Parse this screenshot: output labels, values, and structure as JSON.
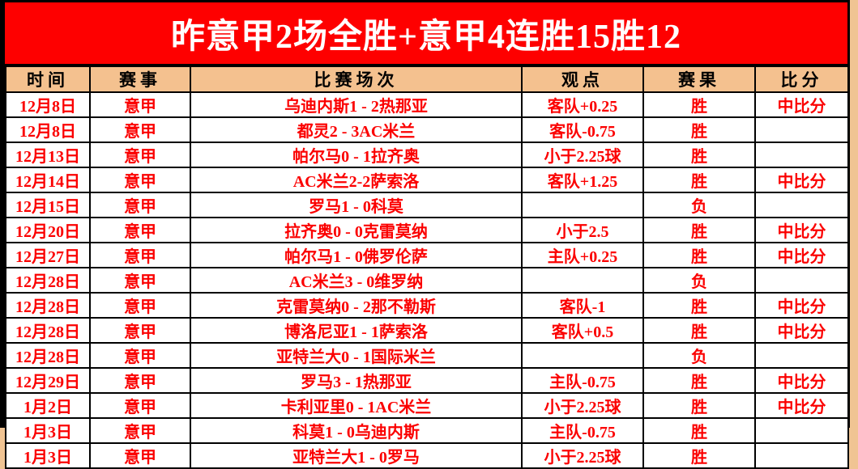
{
  "title": "昨意甲2场全胜+意甲4连胜15胜12",
  "colors": {
    "title_bg": "#FE0000",
    "title_text": "#FFFFFF",
    "header_bg": "#F4C18F",
    "win_cell_bg": "#FFFF00",
    "row_text_red": "#FB0000",
    "loss_text": "#000000",
    "page_bg": "#F0C493",
    "grid_border": "#000000"
  },
  "table": {
    "headers": {
      "time": "时间",
      "league": "赛事",
      "match": "比赛场次",
      "view": "观点",
      "result": "赛果",
      "score": "比分"
    },
    "rows": [
      {
        "date": "12月8日",
        "league": "意甲",
        "match": "乌迪内斯1 - 2热那亚",
        "view": "客队+0.25",
        "result": "胜",
        "result_type": "win",
        "score": "中比分"
      },
      {
        "date": "12月8日",
        "league": "意甲",
        "match": "都灵2 - 3AC米兰",
        "view": "客队-0.75",
        "result": "胜",
        "result_type": "win",
        "score": ""
      },
      {
        "date": "12月13日",
        "league": "意甲",
        "match": "帕尔马0 - 1拉齐奥",
        "view": "小于2.25球",
        "result": "胜",
        "result_type": "win",
        "score": ""
      },
      {
        "date": "12月14日",
        "league": "意甲",
        "match": "AC米兰2-2萨索洛",
        "view": "客队+1.25",
        "result": "胜",
        "result_type": "win",
        "score": "中比分"
      },
      {
        "date": "12月15日",
        "league": "意甲",
        "match": "罗马1 - 0科莫",
        "view": "",
        "result": "负",
        "result_type": "loss",
        "score": ""
      },
      {
        "date": "12月20日",
        "league": "意甲",
        "match": "拉齐奥0 - 0克雷莫纳",
        "view": "小于2.5",
        "result": "胜",
        "result_type": "win",
        "score": "中比分"
      },
      {
        "date": "12月27日",
        "league": "意甲",
        "match": "帕尔马1 - 0佛罗伦萨",
        "view": "主队+0.25",
        "result": "胜",
        "result_type": "win",
        "score": "中比分"
      },
      {
        "date": "12月28日",
        "league": "意甲",
        "match": "AC米兰3 - 0维罗纳",
        "view": "",
        "result": "负",
        "result_type": "loss",
        "score": ""
      },
      {
        "date": "12月28日",
        "league": "意甲",
        "match": "克雷莫纳0 - 2那不勒斯",
        "view": "客队-1",
        "result": "胜",
        "result_type": "win",
        "score": "中比分"
      },
      {
        "date": "12月28日",
        "league": "意甲",
        "match": "博洛尼亚1 - 1萨索洛",
        "view": "客队+0.5",
        "result": "胜",
        "result_type": "win",
        "score": "中比分"
      },
      {
        "date": "12月28日",
        "league": "意甲",
        "match": "亚特兰大0 - 1国际米兰",
        "view": "",
        "result": "负",
        "result_type": "loss",
        "score": ""
      },
      {
        "date": "12月29日",
        "league": "意甲",
        "match": "罗马3 - 1热那亚",
        "view": "主队-0.75",
        "result": "胜",
        "result_type": "win",
        "score": "中比分"
      },
      {
        "date": "1月2日",
        "league": "意甲",
        "match": "卡利亚里0 - 1AC米兰",
        "view": "小于2.25球",
        "result": "胜",
        "result_type": "win",
        "score": "中比分"
      },
      {
        "date": "1月3日",
        "league": "意甲",
        "match": "科莫1 - 0乌迪内斯",
        "view": "主队-0.75",
        "result": "胜",
        "result_type": "win",
        "score": ""
      },
      {
        "date": "1月3日",
        "league": "意甲",
        "match": "亚特兰大1 - 0罗马",
        "view": "小于2.25球",
        "result": "胜",
        "result_type": "win",
        "score": ""
      }
    ]
  }
}
